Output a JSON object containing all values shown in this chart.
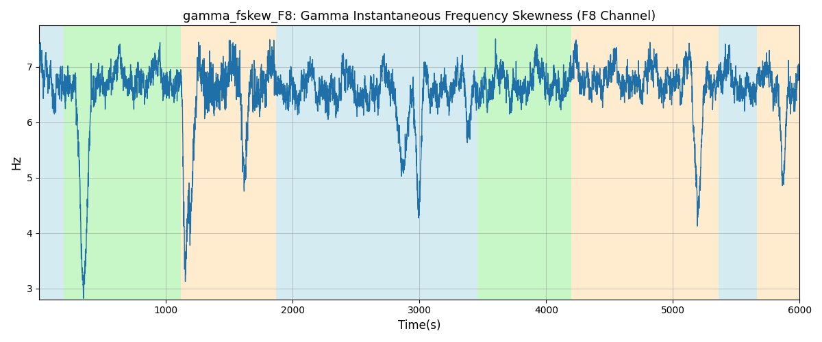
{
  "title": "gamma_fskew_F8: Gamma Instantaneous Frequency Skewness (F8 Channel)",
  "xlabel": "Time(s)",
  "ylabel": "Hz",
  "xlim": [
    0,
    6000
  ],
  "ylim": [
    2.8,
    7.75
  ],
  "yticks": [
    3,
    4,
    5,
    6,
    7
  ],
  "xticks": [
    1000,
    2000,
    3000,
    4000,
    5000,
    6000
  ],
  "line_color": "#1f6fa8",
  "line_width": 1.0,
  "bg_regions": [
    {
      "xmin": 0,
      "xmax": 195,
      "color": "#add8e6",
      "alpha": 0.5
    },
    {
      "xmin": 195,
      "xmax": 1120,
      "color": "#90ee90",
      "alpha": 0.5
    },
    {
      "xmin": 1120,
      "xmax": 1870,
      "color": "#ffdead",
      "alpha": 0.6
    },
    {
      "xmin": 1870,
      "xmax": 3350,
      "color": "#add8e6",
      "alpha": 0.5
    },
    {
      "xmin": 3350,
      "xmax": 3460,
      "color": "#add8e6",
      "alpha": 0.5
    },
    {
      "xmin": 3460,
      "xmax": 4200,
      "color": "#90ee90",
      "alpha": 0.5
    },
    {
      "xmin": 4200,
      "xmax": 5360,
      "color": "#ffdead",
      "alpha": 0.6
    },
    {
      "xmin": 5360,
      "xmax": 5660,
      "color": "#add8e6",
      "alpha": 0.5
    },
    {
      "xmin": 5660,
      "xmax": 6000,
      "color": "#ffdead",
      "alpha": 0.6
    }
  ],
  "seed": 12345,
  "n_points": 6000
}
